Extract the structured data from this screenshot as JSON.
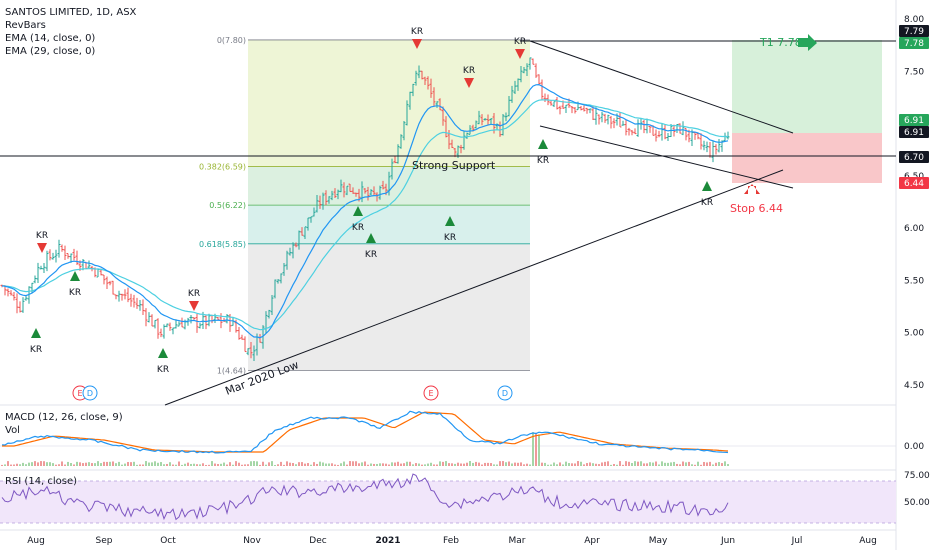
{
  "chart_data": {
    "type": "candlestick",
    "title": "SANTOS LIMITED, 1D, ASX",
    "indicators": [
      "RevBars",
      "EMA (14, close, 0)",
      "EMA (29, close, 0)"
    ],
    "price_axis": {
      "ticks": [
        "8.00",
        "7.50",
        "7.00",
        "6.50",
        "6.00",
        "5.50",
        "5.00",
        "4.50"
      ],
      "range": [
        4.35,
        8.05
      ]
    },
    "price_badges": [
      {
        "label": "7.79",
        "value": 7.79,
        "color": "#131722"
      },
      {
        "label": "7.78",
        "value": 7.78,
        "color": "#26a65b"
      },
      {
        "label": "6.91",
        "value": 6.91,
        "color": "#26a65b"
      },
      {
        "label": "6.91",
        "value": 6.91,
        "color": "#131722"
      },
      {
        "label": "6.70",
        "value": 6.7,
        "color": "#131722"
      },
      {
        "label": "6.44",
        "value": 6.44,
        "color": "#f23645"
      }
    ],
    "time_axis": [
      "Aug",
      "Sep",
      "Oct",
      "Nov",
      "Dec",
      "2021",
      "Feb",
      "Mar",
      "Apr",
      "May",
      "Jun",
      "Jul",
      "Aug"
    ],
    "fibonacci": [
      {
        "label": "0(7.80)",
        "value": 7.8
      },
      {
        "label": "0.382(6.59)",
        "value": 6.59
      },
      {
        "label": "0.5(6.22)",
        "value": 6.22
      },
      {
        "label": "0.618(5.85)",
        "value": 5.85
      },
      {
        "label": "1(4.64)",
        "value": 4.64
      }
    ],
    "annotations": {
      "target": "T1 7.78",
      "stop": "Stop 6.44",
      "support": "Strong Support",
      "trendline": "Mar 2020 Low",
      "signal": "KR"
    },
    "macd": {
      "label": "MACD (12, 26, close, 9)",
      "vol_label": "Vol",
      "ticks": [
        "0.00"
      ]
    },
    "rsi": {
      "label": "RSI (14, close)",
      "ticks": [
        "75.00",
        "50.00"
      ],
      "upper": 70,
      "lower": 30
    },
    "earnings_markers": [
      "E",
      "D",
      "E",
      "D"
    ],
    "colors": {
      "up": "#26a69a",
      "down": "#ef5350",
      "ema14": "#2196f3",
      "ema29": "#4dd0e1",
      "macd": "#2196f3",
      "signal": "#ff6d00",
      "rsi": "#7e57c2",
      "buy_arrow": "#1b8a3a",
      "sell_arrow": "#e53935"
    }
  }
}
